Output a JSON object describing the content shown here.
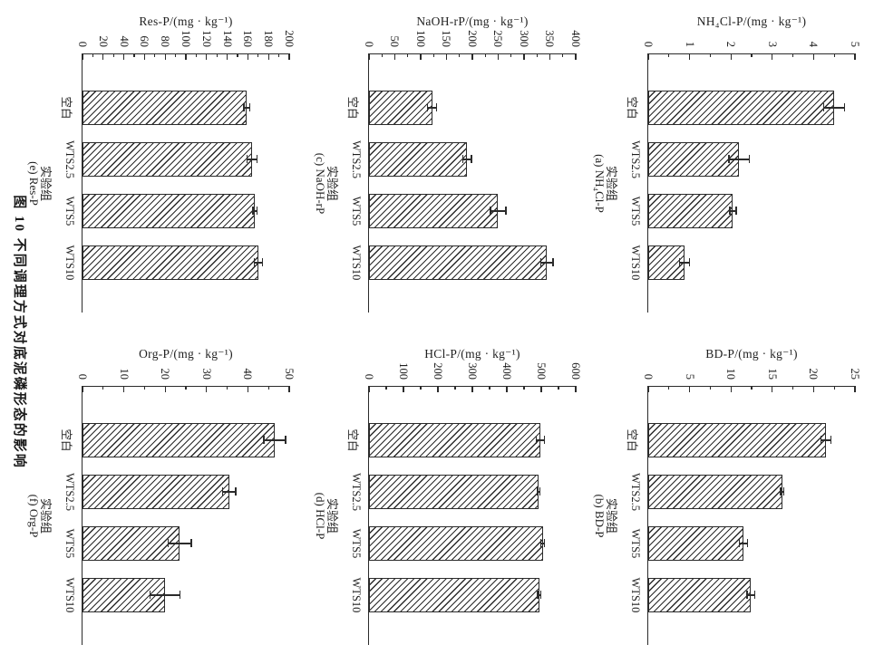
{
  "figure": {
    "caption": "图 10  不同调理方式对底泥磷形态的影响",
    "background": "#ffffff",
    "ink_color": "#2b2b2b",
    "bar_fill": "#ffffff",
    "bar_hatch": "diagonal-lines",
    "orientation": "rotated-90-clockwise"
  },
  "chart_data": [
    {
      "type": "bar",
      "panel_label": "(a) NH₄Cl-P",
      "axis_title": "NH₄Cl-P/(mg · kg⁻¹)",
      "xlabel": "实验组",
      "categories": [
        "空白",
        "WTS2.5",
        "WTS5",
        "WTS10"
      ],
      "values": [
        4.5,
        2.2,
        2.05,
        0.88
      ],
      "errors": [
        0.25,
        0.25,
        0.08,
        0.12
      ],
      "ylim": [
        0,
        5
      ],
      "ytick_step": 1,
      "minor_step": 0.5,
      "ytick_labels": [
        "0",
        "1",
        "2",
        "3",
        "4",
        "5"
      ],
      "grid": false,
      "legend": false
    },
    {
      "type": "bar",
      "panel_label": "(b) BD-P",
      "axis_title": "BD-P/(mg · kg⁻¹)",
      "xlabel": "实验组",
      "categories": [
        "空白",
        "WTS2.5",
        "WTS5",
        "WTS10"
      ],
      "values": [
        21.5,
        16.2,
        11.5,
        12.4
      ],
      "errors": [
        0.6,
        0.2,
        0.5,
        0.45
      ],
      "ylim": [
        0,
        25
      ],
      "ytick_step": 5,
      "minor_step": 2.5,
      "ytick_labels": [
        "0",
        "5",
        "10",
        "15",
        "20",
        "25"
      ],
      "grid": false,
      "legend": false
    },
    {
      "type": "bar",
      "panel_label": "(c) NaOH-rP",
      "axis_title": "NaOH-rP/(mg · kg⁻¹)",
      "xlabel": "实验组",
      "categories": [
        "空白",
        "WTS2.5",
        "WTS5",
        "WTS10"
      ],
      "values": [
        122,
        190,
        250,
        344
      ],
      "errors": [
        9,
        8,
        15,
        12
      ],
      "ylim": [
        0,
        400
      ],
      "ytick_step": 50,
      "minor_step": 25,
      "ytick_labels": [
        "0",
        "50",
        "100",
        "150",
        "200",
        "250",
        "300",
        "350",
        "400"
      ],
      "grid": false,
      "legend": false
    },
    {
      "type": "bar",
      "panel_label": "(d) HCl-P",
      "axis_title": "HCl-P/(mg · kg⁻¹)",
      "xlabel": "实验组",
      "categories": [
        "空白",
        "WTS2.5",
        "WTS5",
        "WTS10"
      ],
      "values": [
        497,
        492,
        504,
        494
      ],
      "errors": [
        12,
        4,
        6,
        5
      ],
      "ylim": [
        0,
        600
      ],
      "ytick_step": 100,
      "minor_step": 50,
      "ytick_labels": [
        "0",
        "100",
        "200",
        "300",
        "400",
        "500",
        "600"
      ],
      "grid": false,
      "legend": false
    },
    {
      "type": "bar",
      "panel_label": "(e) Res-P",
      "axis_title": "Res-P/(mg · kg⁻¹)",
      "xlabel": "实验组",
      "categories": [
        "空白",
        "WTS2.5",
        "WTS5",
        "WTS10"
      ],
      "values": [
        159,
        164,
        167,
        170
      ],
      "errors": [
        3,
        5,
        2,
        4
      ],
      "ylim": [
        0,
        200
      ],
      "ytick_step": 20,
      "minor_step": 10,
      "ytick_labels": [
        "0",
        "20",
        "40",
        "60",
        "80",
        "100",
        "120",
        "140",
        "160",
        "180",
        "200"
      ],
      "grid": false,
      "legend": false
    },
    {
      "type": "bar",
      "panel_label": "(f) Org-P",
      "axis_title": "Org-P/(mg · kg⁻¹)",
      "xlabel": "实验组",
      "categories": [
        "空白",
        "WTS2.5",
        "WTS5",
        "WTS10"
      ],
      "values": [
        46.5,
        35.5,
        23.5,
        20
      ],
      "errors": [
        2.6,
        1.6,
        2.8,
        3.6
      ],
      "ylim": [
        0,
        50
      ],
      "ytick_step": 10,
      "minor_step": 5,
      "ytick_labels": [
        "0",
        "10",
        "20",
        "30",
        "40",
        "50"
      ],
      "grid": false,
      "legend": false
    }
  ]
}
